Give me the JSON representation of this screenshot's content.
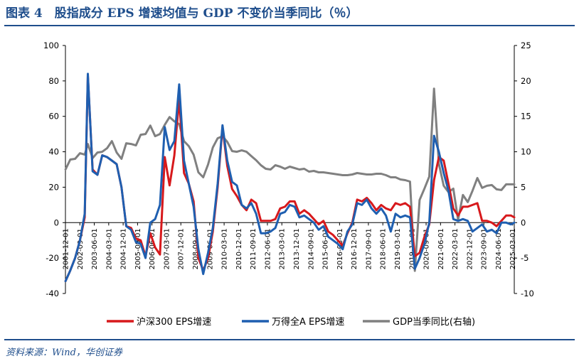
{
  "title": "图表 4　股指成分 EPS 增速均值与 GDP 不变价当季同比（％）",
  "source": "资料来源：Wind，华创证券",
  "chart_data": {
    "type": "line",
    "ylim_left": [
      -40,
      100
    ],
    "yticks_left": [
      "100",
      "80",
      "60",
      "40",
      "20",
      "0",
      "-20",
      "-40"
    ],
    "ylim_right": [
      -10,
      25
    ],
    "yticks_right": [
      "25",
      "20",
      "15",
      "10",
      "5",
      "0",
      "-5",
      "-10"
    ],
    "x_start": 2001.917,
    "x_end": 2025.25,
    "xticks": [
      "2001-12-01",
      "2002-09-01",
      "2003-06-01",
      "2004-03-01",
      "2004-12-01",
      "2005-09-01",
      "2006-06-01",
      "2007-03-01",
      "2007-12-01",
      "2008-09-01",
      "2009-06-01",
      "2010-03-01",
      "2010-12-01",
      "2011-09-01",
      "2012-06-01",
      "2013-03-01",
      "2013-12-01",
      "2014-09-01",
      "2015-06-01",
      "2016-03-01",
      "2016-12-01",
      "2017-09-01",
      "2018-06-01",
      "2019-03-01",
      "2019-12-01",
      "2020-09-01",
      "2021-06-01",
      "2022-03-01",
      "2022-12-01",
      "2023-09-01",
      "2024-06-01",
      "2025-03-01"
    ],
    "series": [
      {
        "name": "沪深300 EPS增速",
        "axis": "left",
        "color": "#d7191c",
        "points": [
          [
            2001.92,
            -33
          ],
          [
            2002.17,
            -27
          ],
          [
            2002.42,
            -20
          ],
          [
            2002.67,
            -10
          ],
          [
            2002.92,
            3
          ],
          [
            2003.08,
            83
          ],
          [
            2003.33,
            30
          ],
          [
            2003.58,
            27
          ],
          [
            2003.83,
            38
          ],
          [
            2004.08,
            37
          ],
          [
            2004.33,
            35
          ],
          [
            2004.58,
            33
          ],
          [
            2004.83,
            20
          ],
          [
            2005.08,
            -2
          ],
          [
            2005.33,
            -3
          ],
          [
            2005.58,
            -9
          ],
          [
            2005.83,
            -10
          ],
          [
            2006.08,
            -19
          ],
          [
            2006.33,
            -6
          ],
          [
            2006.58,
            -14
          ],
          [
            2006.83,
            -18
          ],
          [
            2007.08,
            37
          ],
          [
            2007.33,
            21
          ],
          [
            2007.58,
            38
          ],
          [
            2007.83,
            70
          ],
          [
            2008.08,
            28
          ],
          [
            2008.33,
            22
          ],
          [
            2008.58,
            12
          ],
          [
            2008.83,
            -20
          ],
          [
            2009.08,
            -27
          ],
          [
            2009.33,
            -20
          ],
          [
            2009.58,
            -5
          ],
          [
            2009.83,
            20
          ],
          [
            2010.08,
            54
          ],
          [
            2010.33,
            32
          ],
          [
            2010.58,
            19
          ],
          [
            2010.83,
            15
          ],
          [
            2011.08,
            10
          ],
          [
            2011.33,
            7
          ],
          [
            2011.58,
            13
          ],
          [
            2011.83,
            11
          ],
          [
            2012.08,
            1
          ],
          [
            2012.33,
            1
          ],
          [
            2012.58,
            1
          ],
          [
            2012.83,
            2
          ],
          [
            2013.08,
            8
          ],
          [
            2013.33,
            9
          ],
          [
            2013.58,
            12
          ],
          [
            2013.83,
            12
          ],
          [
            2014.08,
            5
          ],
          [
            2014.33,
            7
          ],
          [
            2014.58,
            5
          ],
          [
            2014.83,
            2
          ],
          [
            2015.08,
            -1
          ],
          [
            2015.33,
            1
          ],
          [
            2015.58,
            -5
          ],
          [
            2015.83,
            -7
          ],
          [
            2016.08,
            -10
          ],
          [
            2016.33,
            -13
          ],
          [
            2016.58,
            -6
          ],
          [
            2016.83,
            0
          ],
          [
            2017.08,
            13
          ],
          [
            2017.33,
            12
          ],
          [
            2017.58,
            14
          ],
          [
            2017.83,
            11
          ],
          [
            2018.08,
            7
          ],
          [
            2018.33,
            10
          ],
          [
            2018.58,
            8
          ],
          [
            2018.83,
            7
          ],
          [
            2019.08,
            11
          ],
          [
            2019.33,
            10
          ],
          [
            2019.58,
            11
          ],
          [
            2019.83,
            9
          ],
          [
            2020.08,
            -19
          ],
          [
            2020.33,
            -17
          ],
          [
            2020.58,
            -8
          ],
          [
            2020.83,
            -1
          ],
          [
            2021.08,
            24
          ],
          [
            2021.33,
            37
          ],
          [
            2021.58,
            35
          ],
          [
            2021.83,
            22
          ],
          [
            2022.08,
            8
          ],
          [
            2022.33,
            4
          ],
          [
            2022.58,
            9
          ],
          [
            2022.83,
            9
          ],
          [
            2023.08,
            10
          ],
          [
            2023.33,
            11
          ],
          [
            2023.58,
            1
          ],
          [
            2023.83,
            1
          ],
          [
            2024.08,
            0
          ],
          [
            2024.33,
            -2
          ],
          [
            2024.58,
            1
          ],
          [
            2024.83,
            4
          ],
          [
            2025.08,
            4
          ],
          [
            2025.25,
            3
          ]
        ]
      },
      {
        "name": "万得全A EPS增速",
        "axis": "left",
        "color": "#1f5fb0",
        "points": [
          [
            2001.92,
            -33
          ],
          [
            2002.17,
            -27
          ],
          [
            2002.42,
            -20
          ],
          [
            2002.67,
            -10
          ],
          [
            2002.92,
            5
          ],
          [
            2003.08,
            84
          ],
          [
            2003.33,
            29
          ],
          [
            2003.58,
            27
          ],
          [
            2003.83,
            38
          ],
          [
            2004.08,
            37
          ],
          [
            2004.33,
            35
          ],
          [
            2004.58,
            33
          ],
          [
            2004.83,
            20
          ],
          [
            2005.08,
            -2
          ],
          [
            2005.33,
            -4
          ],
          [
            2005.58,
            -11
          ],
          [
            2005.83,
            -12
          ],
          [
            2006.08,
            -20
          ],
          [
            2006.33,
            0
          ],
          [
            2006.58,
            2
          ],
          [
            2006.83,
            10
          ],
          [
            2007.08,
            54
          ],
          [
            2007.33,
            41
          ],
          [
            2007.58,
            46
          ],
          [
            2007.83,
            78
          ],
          [
            2008.08,
            35
          ],
          [
            2008.33,
            22
          ],
          [
            2008.58,
            9
          ],
          [
            2008.83,
            -15
          ],
          [
            2009.08,
            -29
          ],
          [
            2009.33,
            -17
          ],
          [
            2009.58,
            -3
          ],
          [
            2009.83,
            22
          ],
          [
            2010.08,
            55
          ],
          [
            2010.33,
            35
          ],
          [
            2010.58,
            23
          ],
          [
            2010.83,
            21
          ],
          [
            2011.08,
            10
          ],
          [
            2011.33,
            8
          ],
          [
            2011.58,
            11
          ],
          [
            2011.83,
            5
          ],
          [
            2012.08,
            -6
          ],
          [
            2012.33,
            -6
          ],
          [
            2012.58,
            -5
          ],
          [
            2012.83,
            -3
          ],
          [
            2013.08,
            5
          ],
          [
            2013.33,
            6
          ],
          [
            2013.58,
            10
          ],
          [
            2013.83,
            9
          ],
          [
            2014.08,
            3
          ],
          [
            2014.33,
            4
          ],
          [
            2014.58,
            2
          ],
          [
            2014.83,
            0
          ],
          [
            2015.08,
            -4
          ],
          [
            2015.33,
            -2
          ],
          [
            2015.58,
            -8
          ],
          [
            2015.83,
            -10
          ],
          [
            2016.08,
            -12
          ],
          [
            2016.33,
            -15
          ],
          [
            2016.58,
            -5
          ],
          [
            2016.83,
            -1
          ],
          [
            2017.08,
            11
          ],
          [
            2017.33,
            10
          ],
          [
            2017.58,
            13
          ],
          [
            2017.83,
            8
          ],
          [
            2018.08,
            5
          ],
          [
            2018.33,
            8
          ],
          [
            2018.58,
            4
          ],
          [
            2018.83,
            -5
          ],
          [
            2019.08,
            5
          ],
          [
            2019.33,
            3
          ],
          [
            2019.58,
            4
          ],
          [
            2019.83,
            3
          ],
          [
            2020.08,
            -26
          ],
          [
            2020.33,
            -20
          ],
          [
            2020.58,
            -12
          ],
          [
            2020.83,
            0
          ],
          [
            2021.08,
            49
          ],
          [
            2021.33,
            40
          ],
          [
            2021.58,
            28
          ],
          [
            2021.83,
            18
          ],
          [
            2022.08,
            2
          ],
          [
            2022.33,
            1
          ],
          [
            2022.58,
            2
          ],
          [
            2022.83,
            1
          ],
          [
            2023.08,
            -5
          ],
          [
            2023.33,
            -3
          ],
          [
            2023.58,
            -1
          ],
          [
            2023.83,
            -5
          ],
          [
            2024.08,
            -4
          ],
          [
            2024.33,
            -6
          ],
          [
            2024.58,
            0
          ],
          [
            2024.83,
            0
          ],
          [
            2025.08,
            -1
          ],
          [
            2025.25,
            0
          ]
        ]
      },
      {
        "name": "GDP当季同比(右轴)",
        "axis": "right",
        "color": "#808080",
        "points": [
          [
            2001.92,
            7.5
          ],
          [
            2002.17,
            8.9
          ],
          [
            2002.42,
            9.0
          ],
          [
            2002.67,
            9.8
          ],
          [
            2002.92,
            9.6
          ],
          [
            2003.08,
            11.1
          ],
          [
            2003.33,
            9.1
          ],
          [
            2003.58,
            9.9
          ],
          [
            2003.83,
            10.0
          ],
          [
            2004.08,
            10.5
          ],
          [
            2004.33,
            11.5
          ],
          [
            2004.58,
            9.9
          ],
          [
            2004.83,
            9.0
          ],
          [
            2005.08,
            11.2
          ],
          [
            2005.33,
            11.1
          ],
          [
            2005.58,
            10.9
          ],
          [
            2005.83,
            12.4
          ],
          [
            2006.08,
            12.5
          ],
          [
            2006.33,
            13.7
          ],
          [
            2006.58,
            12.2
          ],
          [
            2006.83,
            12.5
          ],
          [
            2007.08,
            13.8
          ],
          [
            2007.33,
            14.9
          ],
          [
            2007.58,
            14.3
          ],
          [
            2007.83,
            13.9
          ],
          [
            2008.08,
            11.5
          ],
          [
            2008.33,
            10.8
          ],
          [
            2008.58,
            9.6
          ],
          [
            2008.83,
            7.1
          ],
          [
            2009.08,
            6.4
          ],
          [
            2009.33,
            8.2
          ],
          [
            2009.58,
            10.6
          ],
          [
            2009.83,
            11.9
          ],
          [
            2010.08,
            12.2
          ],
          [
            2010.33,
            11.4
          ],
          [
            2010.58,
            10.1
          ],
          [
            2010.83,
            10.0
          ],
          [
            2011.08,
            10.2
          ],
          [
            2011.33,
            10.0
          ],
          [
            2011.58,
            9.4
          ],
          [
            2011.83,
            8.8
          ],
          [
            2012.08,
            8.1
          ],
          [
            2012.33,
            7.6
          ],
          [
            2012.58,
            7.5
          ],
          [
            2012.83,
            8.1
          ],
          [
            2013.08,
            7.9
          ],
          [
            2013.33,
            7.6
          ],
          [
            2013.58,
            7.9
          ],
          [
            2013.83,
            7.7
          ],
          [
            2014.08,
            7.5
          ],
          [
            2014.33,
            7.6
          ],
          [
            2014.58,
            7.2
          ],
          [
            2014.83,
            7.3
          ],
          [
            2015.08,
            7.1
          ],
          [
            2015.33,
            7.1
          ],
          [
            2015.58,
            7.0
          ],
          [
            2015.83,
            6.9
          ],
          [
            2016.08,
            6.8
          ],
          [
            2016.33,
            6.7
          ],
          [
            2016.58,
            6.7
          ],
          [
            2016.83,
            6.8
          ],
          [
            2017.08,
            7.0
          ],
          [
            2017.33,
            6.9
          ],
          [
            2017.58,
            6.8
          ],
          [
            2017.83,
            6.8
          ],
          [
            2018.08,
            6.9
          ],
          [
            2018.33,
            6.9
          ],
          [
            2018.58,
            6.7
          ],
          [
            2018.83,
            6.4
          ],
          [
            2019.08,
            6.4
          ],
          [
            2019.33,
            6.1
          ],
          [
            2019.58,
            6.0
          ],
          [
            2019.83,
            5.8
          ],
          [
            2020.08,
            -6.8
          ],
          [
            2020.33,
            3.2
          ],
          [
            2020.58,
            4.8
          ],
          [
            2020.83,
            6.5
          ],
          [
            2021.08,
            18.9
          ],
          [
            2021.33,
            8.3
          ],
          [
            2021.58,
            5.2
          ],
          [
            2021.83,
            4.3
          ],
          [
            2022.08,
            4.8
          ],
          [
            2022.33,
            0.4
          ],
          [
            2022.58,
            3.9
          ],
          [
            2022.83,
            2.9
          ],
          [
            2023.08,
            4.5
          ],
          [
            2023.33,
            6.3
          ],
          [
            2023.58,
            4.9
          ],
          [
            2023.83,
            5.2
          ],
          [
            2024.08,
            5.3
          ],
          [
            2024.33,
            4.7
          ],
          [
            2024.58,
            4.6
          ],
          [
            2024.83,
            5.4
          ],
          [
            2025.08,
            5.4
          ],
          [
            2025.25,
            5.4
          ]
        ]
      }
    ]
  }
}
